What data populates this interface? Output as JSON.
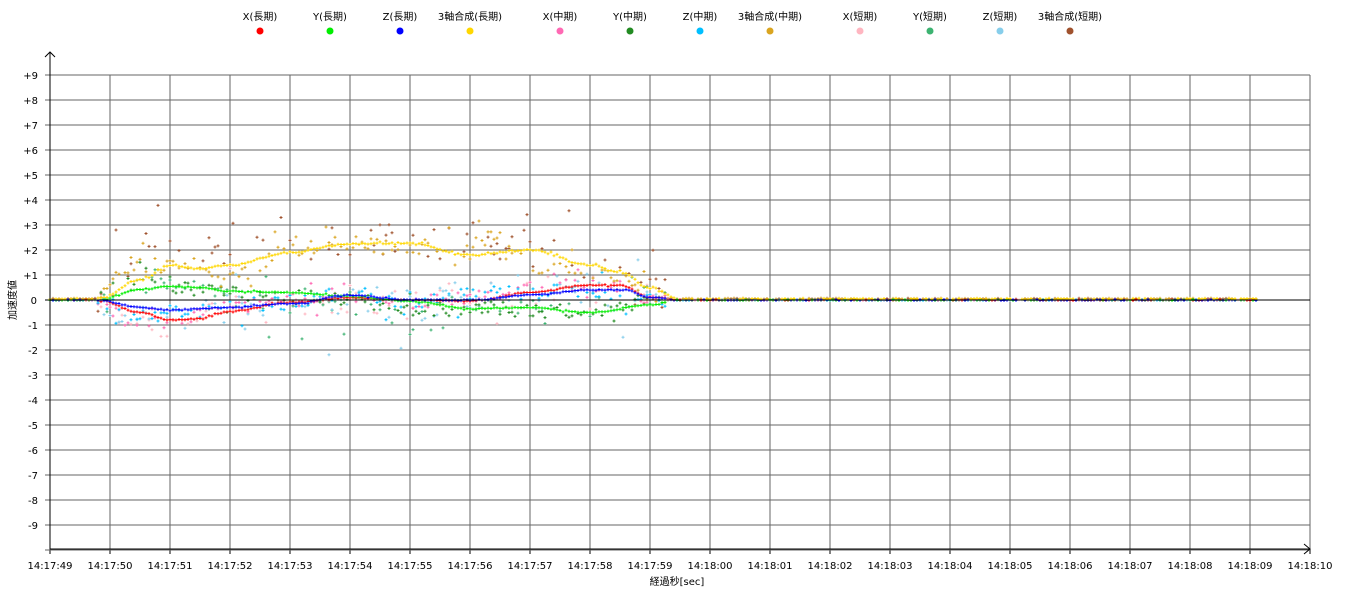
{
  "chart_data": {
    "type": "scatter",
    "xlabel": "経過秒[sec]",
    "ylabel": "加速度値",
    "xlim": [
      0,
      21
    ],
    "ylim": [
      -10,
      10
    ],
    "x_tick_labels": [
      "14:17:49",
      "14:17:50",
      "14:17:51",
      "14:17:52",
      "14:17:53",
      "14:17:54",
      "14:17:55",
      "14:17:56",
      "14:17:57",
      "14:17:58",
      "14:17:59",
      "14:18:00",
      "14:18:01",
      "14:18:02",
      "14:18:03",
      "14:18:04",
      "14:18:05",
      "14:18:06",
      "14:18:07",
      "14:18:08",
      "14:18:09",
      "14:18:10"
    ],
    "y_tick_labels": [
      "+9",
      "+8",
      "+7",
      "+6",
      "+5",
      "+4",
      "+3",
      "+2",
      "+1",
      "0",
      "-1",
      "-2",
      "-3",
      "-4",
      "-5",
      "-6",
      "-7",
      "-8",
      "-9"
    ],
    "y_tick_values": [
      9,
      8,
      7,
      6,
      5,
      4,
      3,
      2,
      1,
      0,
      -1,
      -2,
      -3,
      -4,
      -5,
      -6,
      -7,
      -8,
      -9
    ],
    "grid": true,
    "legend_position": "top",
    "sample_interval": 0.05,
    "x_end": 20.15,
    "series": [
      {
        "name": "X(長期)",
        "color": "#ff0000",
        "noise": 0.02,
        "density": 1,
        "keypoints": [
          [
            0,
            0
          ],
          [
            0.8,
            0
          ],
          [
            1.5,
            -0.5
          ],
          [
            2,
            -0.8
          ],
          [
            2.5,
            -0.75
          ],
          [
            3,
            -0.45
          ],
          [
            4,
            -0.1
          ],
          [
            5,
            0.1
          ],
          [
            6,
            0
          ],
          [
            7,
            -0.05
          ],
          [
            8,
            0.3
          ],
          [
            9,
            0.6
          ],
          [
            9.5,
            0.6
          ],
          [
            10,
            0.1
          ],
          [
            10.5,
            0
          ],
          [
            20.15,
            0
          ]
        ]
      },
      {
        "name": "Y(長期)",
        "color": "#00ee00",
        "noise": 0.02,
        "density": 1,
        "keypoints": [
          [
            0,
            0
          ],
          [
            0.8,
            0
          ],
          [
            1.5,
            0.4
          ],
          [
            2,
            0.55
          ],
          [
            2.5,
            0.5
          ],
          [
            3,
            0.35
          ],
          [
            4,
            0.3
          ],
          [
            5,
            0.15
          ],
          [
            6,
            -0.05
          ],
          [
            7,
            -0.35
          ],
          [
            8,
            -0.3
          ],
          [
            9,
            -0.5
          ],
          [
            10,
            -0.2
          ],
          [
            10.5,
            0
          ],
          [
            20.15,
            0
          ]
        ]
      },
      {
        "name": "Z(長期)",
        "color": "#0000ff",
        "noise": 0.02,
        "density": 1,
        "keypoints": [
          [
            0,
            0
          ],
          [
            0.8,
            0
          ],
          [
            1.5,
            -0.3
          ],
          [
            2,
            -0.4
          ],
          [
            3,
            -0.3
          ],
          [
            4,
            -0.15
          ],
          [
            5,
            0.2
          ],
          [
            6,
            0
          ],
          [
            7,
            0
          ],
          [
            8,
            0.2
          ],
          [
            9,
            0.4
          ],
          [
            9.6,
            0.4
          ],
          [
            10,
            0.1
          ],
          [
            10.5,
            0
          ],
          [
            20.15,
            0
          ]
        ]
      },
      {
        "name": "3軸合成(長期)",
        "color": "#ffd700",
        "noise": 0.03,
        "density": 1,
        "keypoints": [
          [
            0,
            0.05
          ],
          [
            0.8,
            0.05
          ],
          [
            1.5,
            0.8
          ],
          [
            2,
            1.4
          ],
          [
            2.5,
            1.25
          ],
          [
            3,
            1.4
          ],
          [
            4,
            1.9
          ],
          [
            5,
            2.25
          ],
          [
            6,
            2.25
          ],
          [
            7,
            1.8
          ],
          [
            8,
            2.0
          ],
          [
            9,
            1.4
          ],
          [
            9.5,
            1.1
          ],
          [
            10,
            0.5
          ],
          [
            10.5,
            0.05
          ],
          [
            20.15,
            0.05
          ]
        ]
      },
      {
        "name": "X(中期)",
        "color": "#ff69b4",
        "noise": 0.25,
        "density": 0.7,
        "keypoints": [
          [
            0,
            0
          ],
          [
            0.8,
            0
          ],
          [
            1.3,
            -0.8
          ],
          [
            2,
            -1.0
          ],
          [
            2.5,
            -0.6
          ],
          [
            3,
            -0.3
          ],
          [
            4,
            0
          ],
          [
            5,
            0.1
          ],
          [
            6,
            -0.1
          ],
          [
            7,
            0.1
          ],
          [
            8,
            0.5
          ],
          [
            9,
            0.6
          ],
          [
            9.6,
            0.5
          ],
          [
            10,
            0
          ],
          [
            20.15,
            0
          ]
        ]
      },
      {
        "name": "Y(中期)",
        "color": "#228b22",
        "noise": 0.3,
        "density": 0.7,
        "keypoints": [
          [
            0,
            0
          ],
          [
            0.8,
            0
          ],
          [
            1.3,
            0.8
          ],
          [
            1.7,
            1.0
          ],
          [
            2.3,
            0.4
          ],
          [
            3,
            0.3
          ],
          [
            4,
            0.1
          ],
          [
            5,
            0
          ],
          [
            6,
            -0.5
          ],
          [
            7,
            -0.3
          ],
          [
            8,
            -0.4
          ],
          [
            9,
            -0.5
          ],
          [
            10,
            0
          ],
          [
            20.15,
            0
          ]
        ]
      },
      {
        "name": "Z(中期)",
        "color": "#00bfff",
        "noise": 0.3,
        "density": 0.7,
        "keypoints": [
          [
            0,
            0
          ],
          [
            0.8,
            0
          ],
          [
            1.4,
            -0.7
          ],
          [
            2,
            -0.5
          ],
          [
            3,
            -0.2
          ],
          [
            4,
            -0.1
          ],
          [
            5,
            0.3
          ],
          [
            6,
            -0.2
          ],
          [
            7,
            0.2
          ],
          [
            8,
            0.3
          ],
          [
            9,
            0.4
          ],
          [
            9.6,
            0.3
          ],
          [
            10,
            0
          ],
          [
            20.15,
            0
          ]
        ]
      },
      {
        "name": "3軸合成(中期)",
        "color": "#daa520",
        "noise": 0.3,
        "density": 0.7,
        "keypoints": [
          [
            0,
            0.05
          ],
          [
            0.8,
            0.05
          ],
          [
            1.3,
            1.4
          ],
          [
            1.7,
            1.4
          ],
          [
            2.5,
            1.4
          ],
          [
            3,
            0.9
          ],
          [
            4,
            2.0
          ],
          [
            5,
            2.3
          ],
          [
            6,
            2.0
          ],
          [
            7,
            2.2
          ],
          [
            7.5,
            2.6
          ],
          [
            8,
            1.3
          ],
          [
            9,
            1.2
          ],
          [
            9.6,
            0.8
          ],
          [
            10,
            0.2
          ],
          [
            10.5,
            0.05
          ],
          [
            20.15,
            0.05
          ]
        ]
      },
      {
        "name": "X(短期)",
        "color": "#ffb6c1",
        "noise": 0.6,
        "density": 0.4,
        "keypoints": [
          [
            0,
            0
          ],
          [
            0.8,
            0
          ],
          [
            1.5,
            -1.0
          ],
          [
            2,
            -1.2
          ],
          [
            3,
            -0.3
          ],
          [
            4,
            -0.3
          ],
          [
            5,
            0
          ],
          [
            6,
            -0.2
          ],
          [
            7,
            0.3
          ],
          [
            8,
            0.3
          ],
          [
            9,
            0.5
          ],
          [
            10,
            0
          ],
          [
            20.15,
            0
          ]
        ]
      },
      {
        "name": "Y(短期)",
        "color": "#3cb371",
        "noise": 0.6,
        "density": 0.4,
        "keypoints": [
          [
            0,
            0
          ],
          [
            0.8,
            0
          ],
          [
            1.5,
            0.9
          ],
          [
            2,
            0.8
          ],
          [
            3,
            0.3
          ],
          [
            4,
            0
          ],
          [
            5,
            -0.2
          ],
          [
            6,
            -0.8
          ],
          [
            7,
            -0.4
          ],
          [
            8,
            -0.4
          ],
          [
            9,
            -0.3
          ],
          [
            10,
            0
          ],
          [
            20.15,
            0
          ]
        ]
      },
      {
        "name": "Z(短期)",
        "color": "#87ceeb",
        "noise": 0.7,
        "density": 0.4,
        "keypoints": [
          [
            0,
            0
          ],
          [
            0.8,
            0
          ],
          [
            1.5,
            -0.7
          ],
          [
            2.5,
            -0.6
          ],
          [
            3,
            -0.5
          ],
          [
            4,
            -0.4
          ],
          [
            5,
            0
          ],
          [
            6,
            -0.3
          ],
          [
            7,
            0.2
          ],
          [
            8,
            0.3
          ],
          [
            9,
            0.4
          ],
          [
            10,
            0
          ],
          [
            20.15,
            0
          ]
        ]
      },
      {
        "name": "3軸合成(短期)",
        "color": "#a0522d",
        "noise": 0.8,
        "density": 0.4,
        "keypoints": [
          [
            0,
            0.05
          ],
          [
            0.8,
            0.05
          ],
          [
            1.3,
            1.5
          ],
          [
            2,
            1.6
          ],
          [
            3,
            2.2
          ],
          [
            4,
            2.4
          ],
          [
            5,
            2.5
          ],
          [
            6,
            2.4
          ],
          [
            7,
            2.4
          ],
          [
            8,
            2.0
          ],
          [
            9,
            1.0
          ],
          [
            9.6,
            0.6
          ],
          [
            10,
            0.1
          ],
          [
            10.5,
            0.05
          ],
          [
            20.15,
            0.05
          ]
        ]
      }
    ]
  }
}
